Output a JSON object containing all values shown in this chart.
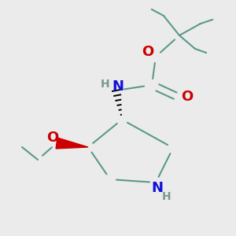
{
  "bg_color": "#ebebeb",
  "bond_color": "#5a9a8a",
  "N_color": "#1010dd",
  "O_color": "#cc0000",
  "H_color": "#7a9a8a",
  "figsize": [
    3.0,
    3.0
  ],
  "dpi": 100,
  "xlim": [
    0,
    300
  ],
  "ylim": [
    0,
    300
  ]
}
